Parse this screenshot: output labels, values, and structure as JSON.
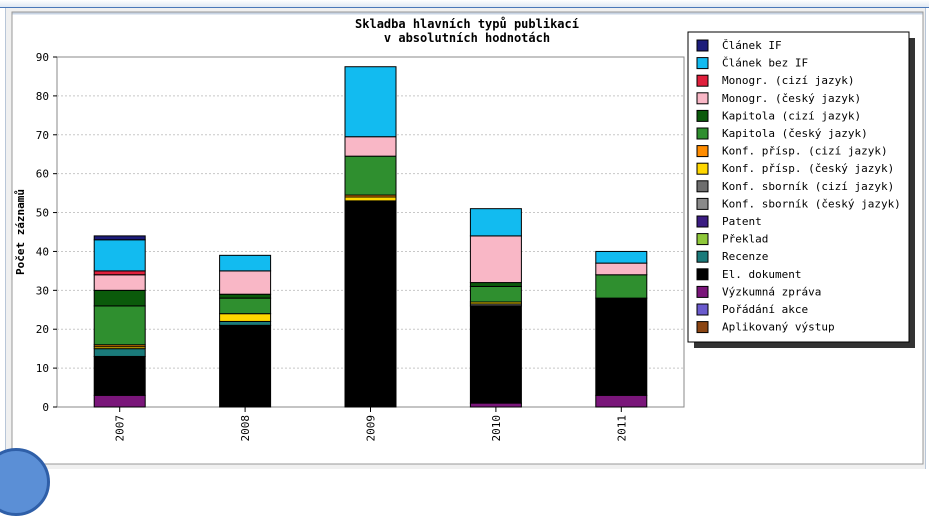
{
  "chart_data": {
    "type": "bar",
    "stacked": true,
    "title": "Skladba hlavních typů publikací",
    "subtitle": "v absolutních hodnotách",
    "ylabel": "Počet záznamů",
    "xlabel": "",
    "ylim": [
      0,
      90
    ],
    "yticks": [
      0,
      10,
      20,
      30,
      40,
      50,
      60,
      70,
      80,
      90
    ],
    "grid": true,
    "legend_position": "right",
    "categories": [
      "2007",
      "2008",
      "2009",
      "2010",
      "2011"
    ],
    "series": [
      {
        "name": "Článek IF",
        "color": "#1c1c7a",
        "values": [
          1,
          0,
          0,
          0,
          0
        ]
      },
      {
        "name": "Článek bez IF",
        "color": "#12bbf0",
        "values": [
          8,
          4,
          18,
          7,
          3
        ]
      },
      {
        "name": "Monogr. (cizí jazyk)",
        "color": "#e0203c",
        "values": [
          1,
          0,
          0,
          0,
          0
        ]
      },
      {
        "name": "Monogr. (český jazyk)",
        "color": "#f9b7c6",
        "values": [
          4,
          6,
          5,
          12,
          3
        ]
      },
      {
        "name": "Kapitola (cizí jazyk)",
        "color": "#0b5a0b",
        "values": [
          4,
          1,
          0,
          1,
          0
        ]
      },
      {
        "name": "Kapitola (český jazyk)",
        "color": "#2f8f2f",
        "values": [
          10,
          4,
          10,
          4,
          6
        ]
      },
      {
        "name": "Konf. přísp. (cizí jazyk)",
        "color": "#ff8c00",
        "values": [
          0.5,
          0,
          0.5,
          0,
          0
        ]
      },
      {
        "name": "Konf. přísp. (český jazyk)",
        "color": "#ffd700",
        "values": [
          0.5,
          2,
          1,
          0.5,
          0
        ]
      },
      {
        "name": "Konf. sborník (cizí jazyk)",
        "color": "#6e6e6e",
        "values": [
          0,
          0,
          0,
          0.5,
          0
        ]
      },
      {
        "name": "Konf. sborník (český jazyk)",
        "color": "#8a8a8a",
        "values": [
          0,
          0,
          0,
          0,
          0
        ]
      },
      {
        "name": "Patent",
        "color": "#3b1d82",
        "values": [
          0,
          0,
          0,
          0,
          0
        ]
      },
      {
        "name": "Překlad",
        "color": "#8fc83a",
        "values": [
          0,
          0,
          0,
          0,
          0
        ]
      },
      {
        "name": "Recenze",
        "color": "#1a7a7a",
        "values": [
          2,
          1,
          0,
          0,
          0
        ]
      },
      {
        "name": "El. dokument",
        "color": "#000000",
        "values": [
          10,
          21,
          53,
          25,
          25
        ]
      },
      {
        "name": "Výzkumná zpráva",
        "color": "#7a167a",
        "values": [
          3,
          0,
          0,
          1,
          3
        ]
      },
      {
        "name": "Pořádání akce",
        "color": "#6a5acd",
        "values": [
          0,
          0,
          0,
          0,
          0
        ]
      },
      {
        "name": "Aplikovaný výstup",
        "color": "#8b4513",
        "values": [
          0,
          0,
          0,
          0,
          0
        ]
      }
    ]
  }
}
